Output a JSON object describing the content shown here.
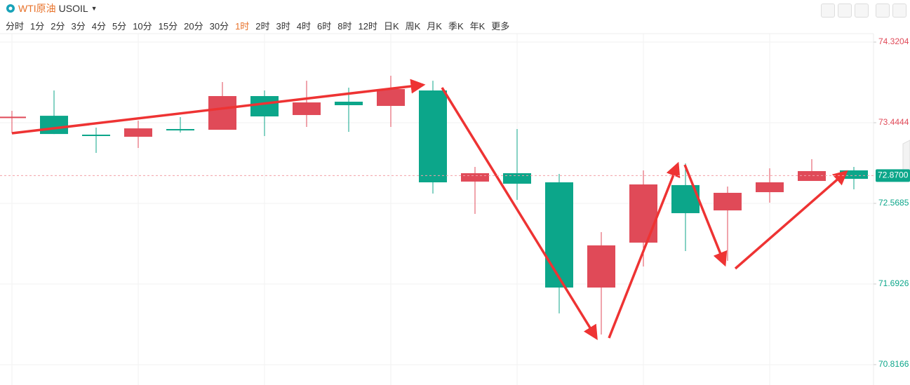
{
  "header": {
    "title": "WTI原油",
    "symbol": "USOIL",
    "intervals": [
      "分时",
      "1分",
      "2分",
      "3分",
      "4分",
      "5分",
      "10分",
      "15分",
      "20分",
      "30分",
      "1时",
      "2时",
      "3时",
      "4时",
      "6时",
      "8时",
      "12时",
      "日K",
      "周K",
      "月K",
      "季K",
      "年K",
      "更多"
    ],
    "active_interval": 10
  },
  "chart_data": {
    "type": "candlestick",
    "open": [
      73.5,
      73.52,
      73.315,
      73.292,
      73.376,
      73.368,
      73.734,
      73.528,
      73.673,
      73.627,
      73.795,
      72.805,
      72.896,
      72.797,
      71.654,
      72.142,
      72.767,
      72.492,
      72.69,
      72.812,
      72.927
    ],
    "high": [
      73.574,
      73.795,
      73.391,
      73.467,
      73.505,
      73.886,
      73.795,
      73.901,
      73.825,
      73.955,
      73.901,
      72.965,
      73.376,
      72.888,
      72.256,
      72.926,
      73.003,
      72.751,
      72.949,
      73.048,
      72.965
    ],
    "low": [
      73.33,
      73.322,
      73.117,
      73.17,
      73.338,
      73.368,
      73.3,
      73.399,
      73.345,
      73.399,
      72.675,
      72.454,
      72.606,
      71.373,
      71.144,
      71.883,
      72.05,
      71.944,
      72.576,
      72.812,
      72.721
    ],
    "close": [
      73.51,
      73.322,
      73.3,
      73.383,
      73.361,
      73.734,
      73.513,
      73.665,
      73.635,
      73.81,
      72.797,
      72.896,
      72.782,
      71.654,
      72.112,
      72.774,
      72.462,
      72.683,
      72.797,
      72.919,
      72.835
    ],
    "up_color": "#e04a58",
    "down_color": "#0ca68a",
    "ylim": [
      70.74,
      74.412
    ],
    "yticks": [
      74.3204,
      73.4444,
      72.5685,
      71.6926,
      70.8166
    ],
    "last_price": {
      "value": 72.87,
      "label": "72.8700"
    },
    "grid": true
  }
}
